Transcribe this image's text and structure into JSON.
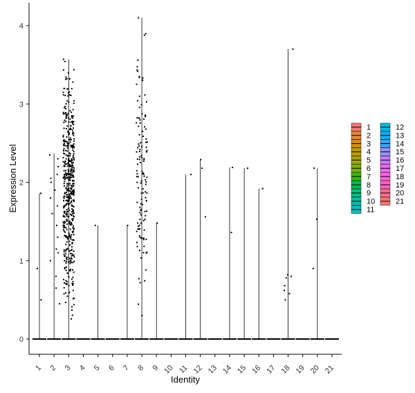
{
  "chart_data": {
    "type": "violin",
    "title": "",
    "xlabel": "Identity",
    "ylabel": "Expression Level",
    "categories": [
      "1",
      "2",
      "3",
      "4",
      "5",
      "6",
      "7",
      "8",
      "9",
      "10",
      "11",
      "12",
      "13",
      "14",
      "15",
      "16",
      "17",
      "18",
      "19",
      "20",
      "21"
    ],
    "ylim": [
      -0.2,
      4.3
    ],
    "yticks": [
      0,
      1,
      2,
      3,
      4
    ],
    "grid": false,
    "legend_position": "right",
    "colors": {
      "1": "#F8766D",
      "2": "#EA8331",
      "3": "#D89000",
      "4": "#C09B00",
      "5": "#A3A500",
      "6": "#7CAE00",
      "7": "#39B600",
      "8": "#00BB4E",
      "9": "#00BF7D",
      "10": "#00C1A3",
      "11": "#00BFC4",
      "12": "#00BAE0",
      "13": "#00B0F6",
      "14": "#35A2FF",
      "15": "#9590FF",
      "16": "#C77CFF",
      "17": "#E76BF3",
      "18": "#FA62DB",
      "19": "#FF62BC",
      "20": "#FF6C91",
      "21": "#F8766D"
    },
    "series": [
      {
        "name": "1",
        "max": 1.86,
        "points": [
          0.5,
          0.9,
          1.86
        ]
      },
      {
        "name": "2",
        "max": 2.37,
        "points": [
          0.45,
          0.65,
          0.8,
          1.0,
          1.1,
          1.15,
          1.3,
          1.45,
          1.6,
          1.7,
          1.8,
          1.9,
          2.0,
          2.05,
          2.1,
          2.2,
          2.3,
          2.35
        ]
      },
      {
        "name": "3",
        "max": 3.57,
        "dense": true,
        "n": 520,
        "range": [
          0.25,
          3.57
        ]
      },
      {
        "name": "4",
        "max": 0,
        "points": []
      },
      {
        "name": "5",
        "max": 1.45,
        "points": [
          1.45
        ]
      },
      {
        "name": "6",
        "max": 0,
        "points": []
      },
      {
        "name": "7",
        "max": 1.45,
        "points": [
          1.45
        ]
      },
      {
        "name": "8",
        "max": 4.1,
        "dense": true,
        "n": 130,
        "range": [
          0.22,
          4.1
        ]
      },
      {
        "name": "9",
        "max": 1.48,
        "points": [
          1.48
        ]
      },
      {
        "name": "10",
        "max": 0,
        "points": []
      },
      {
        "name": "11",
        "max": 2.1,
        "points": [
          2.1
        ]
      },
      {
        "name": "12",
        "max": 2.29,
        "points": [
          1.56,
          2.18,
          2.29
        ]
      },
      {
        "name": "13",
        "max": 0,
        "points": []
      },
      {
        "name": "14",
        "max": 2.19,
        "points": [
          1.36,
          2.19
        ]
      },
      {
        "name": "15",
        "max": 2.18,
        "points": [
          2.18
        ]
      },
      {
        "name": "16",
        "max": 1.92,
        "points": [
          1.92
        ]
      },
      {
        "name": "17",
        "max": 0,
        "points": []
      },
      {
        "name": "18",
        "max": 3.7,
        "points": [
          0.5,
          0.58,
          0.62,
          0.68,
          0.78,
          0.8,
          0.82,
          3.7
        ]
      },
      {
        "name": "19",
        "max": 0,
        "points": []
      },
      {
        "name": "20",
        "max": 2.18,
        "points": [
          0.9,
          1.53,
          2.18
        ]
      },
      {
        "name": "21",
        "max": 0,
        "points": []
      }
    ]
  }
}
